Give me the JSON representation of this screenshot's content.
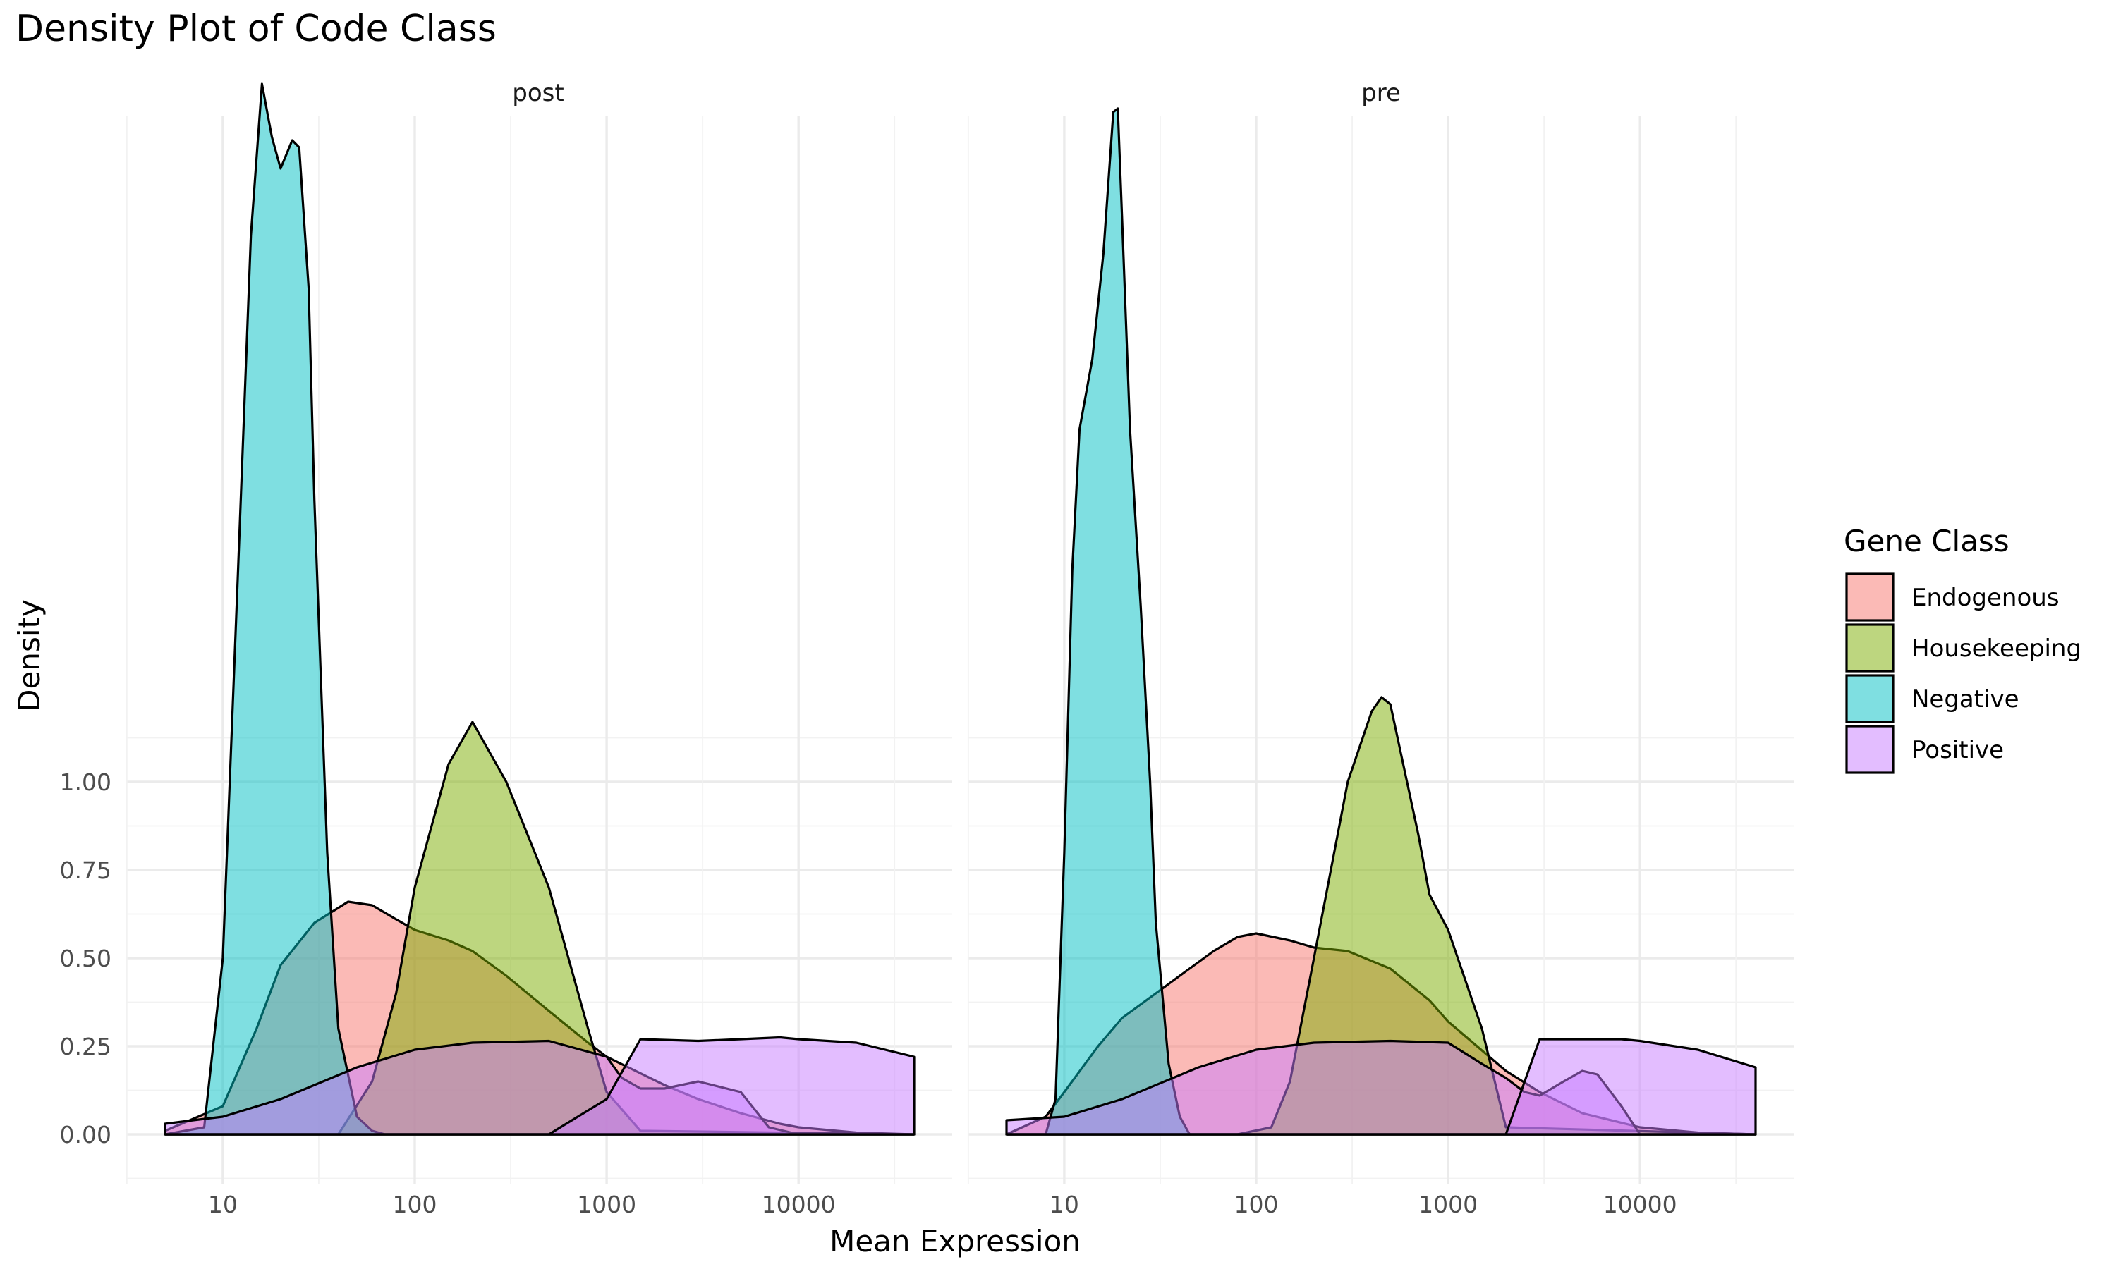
{
  "chart_data": {
    "type": "area",
    "title": "Density Plot of Code Class",
    "xlabel": "Mean Expression",
    "ylabel": "Density",
    "x_scale": "log10",
    "xlim": [
      5,
      40000
    ],
    "ylim": [
      -0.13,
      2.9
    ],
    "x_ticks": [
      10,
      100,
      1000,
      10000
    ],
    "x_tick_labels": [
      "10",
      "100",
      "1000",
      "10000"
    ],
    "y_ticks": [
      0,
      0.25,
      0.5,
      0.75,
      1
    ],
    "y_tick_labels": [
      "0.00",
      "0.25",
      "0.50",
      "0.75",
      "1.00"
    ],
    "grid": true,
    "legend": {
      "title": "Gene Class",
      "position": "right",
      "entries": [
        "Endogenous",
        "Housekeeping",
        "Negative",
        "Positive"
      ]
    },
    "colors": {
      "Endogenous": "#F8766D",
      "Housekeeping": "#7CAE00",
      "Negative": "#00BFC4",
      "Positive": "#C77CFF"
    },
    "facets": [
      {
        "label": "post",
        "series": [
          {
            "name": "Endogenous",
            "x": [
              5,
              10,
              15,
              20,
              30,
              45,
              60,
              80,
              100,
              150,
              200,
              300,
              500,
              800,
              1000,
              2000,
              3000,
              5000,
              8000,
              10000,
              20000,
              40000
            ],
            "y": [
              0.01,
              0.08,
              0.3,
              0.48,
              0.6,
              0.66,
              0.65,
              0.61,
              0.58,
              0.55,
              0.52,
              0.45,
              0.35,
              0.26,
              0.22,
              0.14,
              0.1,
              0.06,
              0.03,
              0.02,
              0.005,
              0.0
            ]
          },
          {
            "name": "Housekeeping",
            "x": [
              5,
              20,
              40,
              60,
              80,
              100,
              150,
              200,
              300,
              500,
              800,
              1000,
              1500,
              40000
            ],
            "y": [
              0,
              0,
              0,
              0.15,
              0.4,
              0.7,
              1.05,
              1.17,
              1.0,
              0.7,
              0.3,
              0.12,
              0.01,
              0
            ]
          },
          {
            "name": "Negative",
            "x": [
              5,
              8,
              10,
              12,
              14,
              16,
              18,
              20,
              23,
              25,
              28,
              30,
              35,
              40,
              50,
              60,
              70,
              40000
            ],
            "y": [
              0,
              0.02,
              0.5,
              1.6,
              2.55,
              2.98,
              2.83,
              2.74,
              2.82,
              2.8,
              2.4,
              1.8,
              0.8,
              0.3,
              0.05,
              0.01,
              0,
              0
            ]
          },
          {
            "name": "Positive",
            "x": [
              5,
              7,
              10,
              20,
              50,
              100,
              200,
              500,
              1000,
              1200,
              1500,
              2000,
              3000,
              5000,
              7000,
              10000,
              20000,
              40000
            ],
            "y": [
              0.03,
              0.04,
              0.05,
              0.1,
              0.19,
              0.24,
              0.26,
              0.265,
              0.22,
              0.16,
              0.13,
              0.13,
              0.15,
              0.12,
              0.02,
              0.0,
              0,
              0
            ]
          },
          {
            "name": "Positive",
            "x": [
              5,
              10,
              50,
              100,
              500,
              1000,
              1500,
              3000,
              5000,
              8000,
              10000,
              20000,
              40000
            ],
            "y": [
              0.0,
              0.0,
              0.0,
              0.0,
              0.0,
              0.1,
              0.27,
              0.265,
              0.27,
              0.275,
              0.27,
              0.26,
              0.22
            ]
          }
        ]
      },
      {
        "label": "pre",
        "series": [
          {
            "name": "Endogenous",
            "x": [
              5,
              8,
              10,
              15,
              20,
              30,
              40,
              60,
              80,
              100,
              150,
              200,
              300,
              500,
              800,
              1000,
              2000,
              3000,
              5000,
              10000,
              20000,
              40000
            ],
            "y": [
              0.0,
              0.05,
              0.12,
              0.25,
              0.33,
              0.4,
              0.45,
              0.52,
              0.56,
              0.57,
              0.55,
              0.53,
              0.52,
              0.47,
              0.38,
              0.32,
              0.18,
              0.12,
              0.06,
              0.02,
              0.005,
              0.0
            ]
          },
          {
            "name": "Housekeeping",
            "x": [
              5,
              80,
              120,
              150,
              200,
              300,
              400,
              450,
              500,
              700,
              800,
              1000,
              1500,
              2000,
              40000
            ],
            "y": [
              0,
              0,
              0.02,
              0.15,
              0.5,
              1.0,
              1.2,
              1.24,
              1.22,
              0.85,
              0.68,
              0.58,
              0.3,
              0.02,
              0
            ]
          },
          {
            "name": "Negative",
            "x": [
              5,
              8,
              9,
              10,
              11,
              12,
              14,
              16,
              18,
              19,
              20,
              22,
              25,
              28,
              30,
              35,
              40,
              45,
              40000
            ],
            "y": [
              0,
              0,
              0.1,
              0.8,
              1.6,
              2.0,
              2.2,
              2.5,
              2.9,
              2.91,
              2.6,
              2.0,
              1.5,
              1.0,
              0.6,
              0.2,
              0.05,
              0,
              0
            ]
          },
          {
            "name": "Positive",
            "x": [
              5,
              10,
              20,
              50,
              100,
              200,
              500,
              1000,
              1500,
              2000,
              2500,
              3000,
              4000,
              5000,
              6000,
              8000,
              10000,
              40000
            ],
            "y": [
              0.04,
              0.05,
              0.1,
              0.19,
              0.24,
              0.26,
              0.265,
              0.26,
              0.2,
              0.16,
              0.12,
              0.11,
              0.15,
              0.18,
              0.17,
              0.08,
              0.0,
              0
            ]
          },
          {
            "name": "Positive",
            "x": [
              5,
              10,
              100,
              1000,
              2000,
              3000,
              5000,
              8000,
              10000,
              20000,
              40000
            ],
            "y": [
              0,
              0,
              0,
              0,
              0.0,
              0.27,
              0.27,
              0.27,
              0.265,
              0.24,
              0.19
            ]
          }
        ]
      }
    ]
  }
}
